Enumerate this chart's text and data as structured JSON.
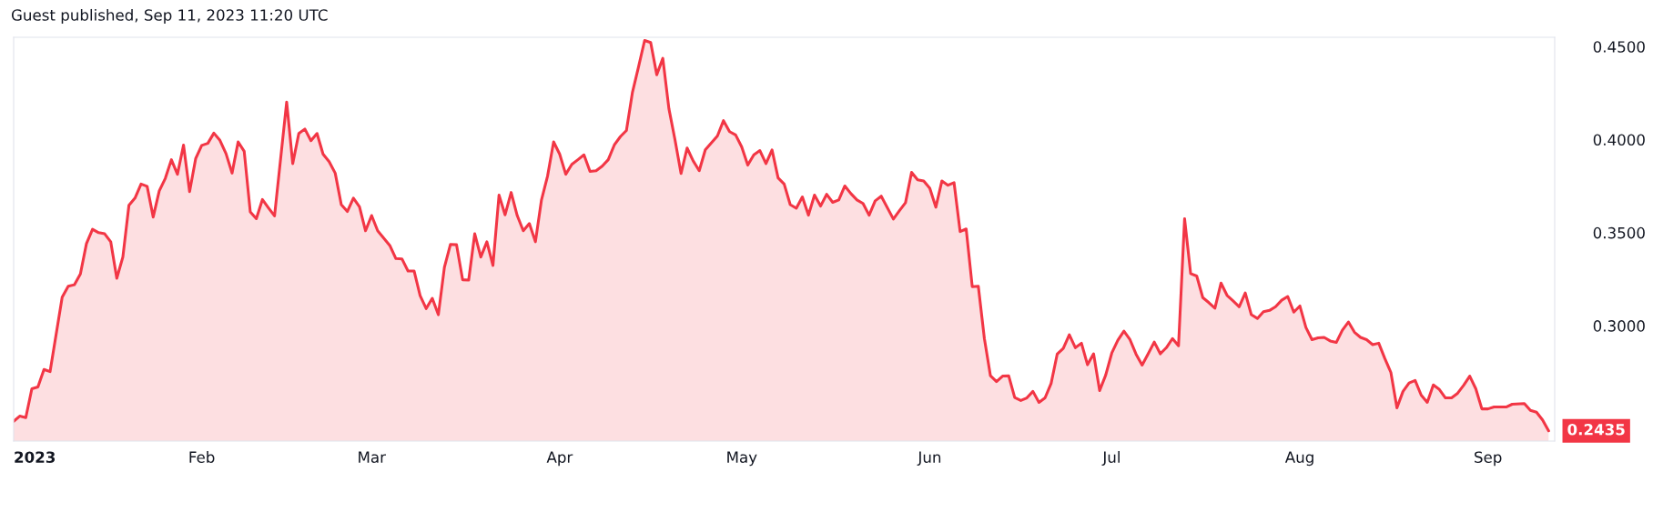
{
  "chart_data": {
    "type": "area",
    "annotations": [
      "Guest published, Sep 11, 2023 11:20 UTC",
      {
        "text": "0.2435",
        "x": "2023-09-11",
        "y": 0.2435
      }
    ],
    "xlim": [
      "2023-01-01",
      "2023-09-12"
    ],
    "xticks": [
      {
        "value": "2023-01-01",
        "label": "2023"
      },
      {
        "value": "2023-02-01",
        "label": "Feb"
      },
      {
        "value": "2023-03-01",
        "label": "Mar"
      },
      {
        "value": "2023-04-01",
        "label": "Apr"
      },
      {
        "value": "2023-05-01",
        "label": "May"
      },
      {
        "value": "2023-06-01",
        "label": "Jun"
      },
      {
        "value": "2023-07-01",
        "label": "Jul"
      },
      {
        "value": "2023-08-01",
        "label": "Aug"
      },
      {
        "value": "2023-09-01",
        "label": "Sep"
      }
    ],
    "ylim": [
      0.238,
      0.455
    ],
    "yticks": [
      {
        "value": 0.3,
        "label": "0.3000"
      },
      {
        "value": 0.35,
        "label": "0.3500"
      },
      {
        "value": 0.4,
        "label": "0.4000"
      },
      {
        "value": 0.45,
        "label": "0.4500"
      }
    ],
    "grid": false,
    "legend": false,
    "series": [
      {
        "color": "#f23645",
        "x": [
          "2023-01-01",
          "2023-01-02",
          "2023-01-03",
          "2023-01-04",
          "2023-01-05",
          "2023-01-06",
          "2023-01-07",
          "2023-01-09",
          "2023-01-10",
          "2023-01-11",
          "2023-01-12",
          "2023-01-13",
          "2023-01-14",
          "2023-01-15",
          "2023-01-16",
          "2023-01-17",
          "2023-01-18",
          "2023-01-19",
          "2023-01-20",
          "2023-01-21",
          "2023-01-22",
          "2023-01-23",
          "2023-01-24",
          "2023-01-25",
          "2023-01-26",
          "2023-01-27",
          "2023-01-28",
          "2023-01-29",
          "2023-01-30",
          "2023-01-31",
          "2023-02-01",
          "2023-02-02",
          "2023-02-03",
          "2023-02-04",
          "2023-02-05",
          "2023-02-06",
          "2023-02-07",
          "2023-02-08",
          "2023-02-09",
          "2023-02-10",
          "2023-02-11",
          "2023-02-12",
          "2023-02-13",
          "2023-02-15",
          "2023-02-16",
          "2023-02-17",
          "2023-02-18",
          "2023-02-19",
          "2023-02-20",
          "2023-02-21",
          "2023-02-22",
          "2023-02-23",
          "2023-02-24",
          "2023-02-25",
          "2023-02-26",
          "2023-02-27",
          "2023-02-28",
          "2023-03-01",
          "2023-03-02",
          "2023-03-04",
          "2023-03-05",
          "2023-03-06",
          "2023-03-07",
          "2023-03-08",
          "2023-03-09",
          "2023-03-10",
          "2023-03-11",
          "2023-03-12",
          "2023-03-13",
          "2023-03-14",
          "2023-03-15",
          "2023-03-16",
          "2023-03-17",
          "2023-03-18",
          "2023-03-19",
          "2023-03-20",
          "2023-03-21",
          "2023-03-22",
          "2023-03-23",
          "2023-03-24",
          "2023-03-25",
          "2023-03-26",
          "2023-03-27",
          "2023-03-28",
          "2023-03-29",
          "2023-03-30",
          "2023-03-31",
          "2023-04-01",
          "2023-04-02",
          "2023-04-03",
          "2023-04-04",
          "2023-04-05",
          "2023-04-06",
          "2023-04-07",
          "2023-04-08",
          "2023-04-09",
          "2023-04-10",
          "2023-04-11",
          "2023-04-12",
          "2023-04-13",
          "2023-04-14",
          "2023-04-15",
          "2023-04-16",
          "2023-04-17",
          "2023-04-18",
          "2023-04-19",
          "2023-04-20",
          "2023-04-21",
          "2023-04-22",
          "2023-04-23",
          "2023-04-24",
          "2023-04-25",
          "2023-04-27",
          "2023-04-28",
          "2023-04-29",
          "2023-04-30",
          "2023-05-01",
          "2023-05-02",
          "2023-05-03",
          "2023-05-04",
          "2023-05-05",
          "2023-05-06",
          "2023-05-07",
          "2023-05-08",
          "2023-05-09",
          "2023-05-10",
          "2023-05-11",
          "2023-05-12",
          "2023-05-13",
          "2023-05-14",
          "2023-05-15",
          "2023-05-16",
          "2023-05-17",
          "2023-05-18",
          "2023-05-19",
          "2023-05-20",
          "2023-05-21",
          "2023-05-22",
          "2023-05-23",
          "2023-05-24",
          "2023-05-26",
          "2023-05-27",
          "2023-05-28",
          "2023-05-29",
          "2023-05-30",
          "2023-05-31",
          "2023-06-01",
          "2023-06-02",
          "2023-06-03",
          "2023-06-04",
          "2023-06-05",
          "2023-06-06",
          "2023-06-07",
          "2023-06-08",
          "2023-06-09",
          "2023-06-10",
          "2023-06-11",
          "2023-06-12",
          "2023-06-13",
          "2023-06-14",
          "2023-06-15",
          "2023-06-16",
          "2023-06-17",
          "2023-06-18",
          "2023-06-19",
          "2023-06-20",
          "2023-06-21",
          "2023-06-22",
          "2023-06-23",
          "2023-06-24",
          "2023-06-25",
          "2023-06-26",
          "2023-06-27",
          "2023-06-28",
          "2023-06-29",
          "2023-06-30",
          "2023-07-01",
          "2023-07-02",
          "2023-07-03",
          "2023-07-04",
          "2023-07-05",
          "2023-07-06",
          "2023-07-07",
          "2023-07-08",
          "2023-07-09",
          "2023-07-10",
          "2023-07-11",
          "2023-07-12",
          "2023-07-13",
          "2023-07-14",
          "2023-07-15",
          "2023-07-16",
          "2023-07-17",
          "2023-07-18",
          "2023-07-19",
          "2023-07-20",
          "2023-07-21",
          "2023-07-22",
          "2023-07-23",
          "2023-07-24",
          "2023-07-25",
          "2023-07-26",
          "2023-07-27",
          "2023-07-28",
          "2023-07-29",
          "2023-07-30",
          "2023-07-31",
          "2023-08-01",
          "2023-08-02",
          "2023-08-03",
          "2023-08-04",
          "2023-08-05",
          "2023-08-06",
          "2023-08-07",
          "2023-08-08",
          "2023-08-09",
          "2023-08-10",
          "2023-08-11",
          "2023-08-12",
          "2023-08-13",
          "2023-08-14",
          "2023-08-15",
          "2023-08-16",
          "2023-08-17",
          "2023-08-18",
          "2023-08-19",
          "2023-08-20",
          "2023-08-21",
          "2023-08-22",
          "2023-08-23",
          "2023-08-24",
          "2023-08-25",
          "2023-08-26",
          "2023-08-27",
          "2023-08-28",
          "2023-08-29",
          "2023-08-30",
          "2023-08-31",
          "2023-09-01",
          "2023-09-02",
          "2023-09-04",
          "2023-09-05",
          "2023-09-07",
          "2023-09-08",
          "2023-09-09",
          "2023-09-10",
          "2023-09-11"
        ],
        "values": [
          0.2486,
          0.2514,
          0.2506,
          0.2661,
          0.2671,
          0.2765,
          0.2753,
          0.3153,
          0.3212,
          0.322,
          0.3278,
          0.3441,
          0.3518,
          0.35,
          0.3494,
          0.3451,
          0.3255,
          0.3369,
          0.3647,
          0.3686,
          0.3761,
          0.3749,
          0.3584,
          0.3725,
          0.3792,
          0.3892,
          0.3814,
          0.3971,
          0.372,
          0.3898,
          0.3969,
          0.398,
          0.4035,
          0.3996,
          0.3925,
          0.382,
          0.3988,
          0.3937,
          0.3612,
          0.3575,
          0.3678,
          0.3633,
          0.359,
          0.4202,
          0.3871,
          0.4033,
          0.4057,
          0.3994,
          0.4033,
          0.3922,
          0.3882,
          0.382,
          0.3651,
          0.3614,
          0.3686,
          0.3639,
          0.351,
          0.3592,
          0.351,
          0.3431,
          0.3361,
          0.3359,
          0.3294,
          0.3294,
          0.3161,
          0.3092,
          0.3147,
          0.3059,
          0.3314,
          0.3437,
          0.3435,
          0.3247,
          0.3245,
          0.3494,
          0.3369,
          0.3451,
          0.3324,
          0.3702,
          0.3596,
          0.3716,
          0.3592,
          0.351,
          0.3549,
          0.3451,
          0.3676,
          0.3804,
          0.3988,
          0.3922,
          0.3814,
          0.3867,
          0.3892,
          0.3918,
          0.3829,
          0.3833,
          0.3857,
          0.3892,
          0.3971,
          0.4016,
          0.4049,
          0.4255,
          0.4392,
          0.4533,
          0.4522,
          0.4349,
          0.4437,
          0.4167,
          0.4,
          0.3818,
          0.3955,
          0.3886,
          0.3833,
          0.3945,
          0.402,
          0.4102,
          0.4043,
          0.4025,
          0.3961,
          0.3863,
          0.3918,
          0.3941,
          0.3871,
          0.3945,
          0.3794,
          0.3761,
          0.3651,
          0.3631,
          0.3692,
          0.3594,
          0.3702,
          0.3643,
          0.3706,
          0.3663,
          0.3676,
          0.3751,
          0.371,
          0.3676,
          0.3657,
          0.3594,
          0.3671,
          0.3696,
          0.3573,
          0.3618,
          0.3661,
          0.3824,
          0.3784,
          0.3778,
          0.3739,
          0.3637,
          0.3778,
          0.3755,
          0.3769,
          0.3506,
          0.352,
          0.321,
          0.3212,
          0.2931,
          0.2731,
          0.27,
          0.2729,
          0.2731,
          0.2614,
          0.2598,
          0.2612,
          0.2647,
          0.2588,
          0.2612,
          0.269,
          0.2847,
          0.2878,
          0.2951,
          0.2882,
          0.2906,
          0.279,
          0.2849,
          0.2651,
          0.2735,
          0.2853,
          0.2922,
          0.2971,
          0.2925,
          0.2847,
          0.2788,
          0.2849,
          0.2912,
          0.2849,
          0.2882,
          0.2931,
          0.2892,
          0.3575,
          0.328,
          0.3267,
          0.3151,
          0.3124,
          0.3094,
          0.3229,
          0.3163,
          0.3133,
          0.3102,
          0.3176,
          0.3059,
          0.3039,
          0.3075,
          0.3082,
          0.3102,
          0.3137,
          0.3157,
          0.3073,
          0.3106,
          0.299,
          0.2925,
          0.2935,
          0.2937,
          0.2918,
          0.291,
          0.2976,
          0.302,
          0.2965,
          0.2937,
          0.2925,
          0.2898,
          0.2906,
          0.2824,
          0.2749,
          0.2559,
          0.2647,
          0.2692,
          0.2706,
          0.2627,
          0.2588,
          0.2682,
          0.2657,
          0.2612,
          0.2612,
          0.2637,
          0.268,
          0.2729,
          0.2661,
          0.2553,
          0.2553,
          0.2563,
          0.2563,
          0.2578,
          0.2582,
          0.2545,
          0.2535,
          0.2494,
          0.2435
        ]
      }
    ]
  }
}
